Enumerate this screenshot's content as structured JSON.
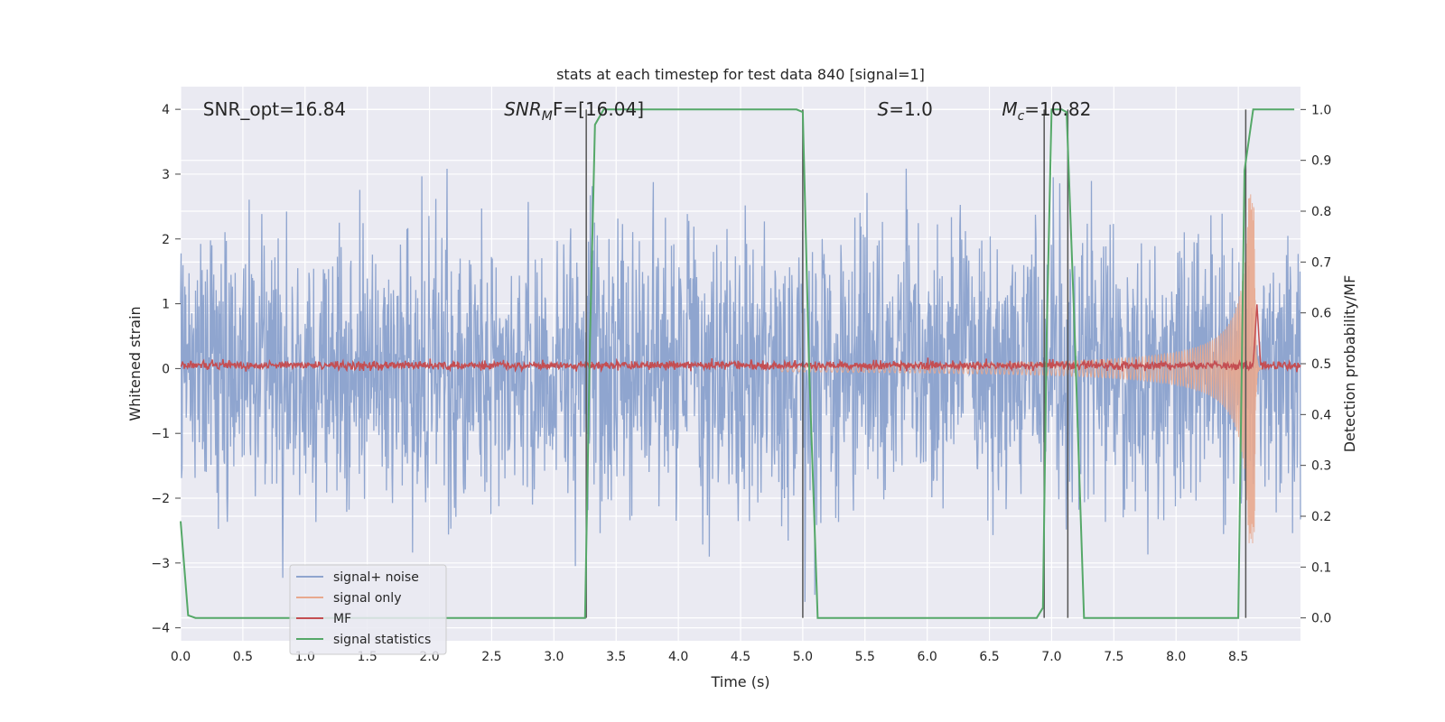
{
  "chart_data": {
    "type": "line",
    "title": "stats at each timestep for test data 840 [signal=1]",
    "xlabel": "Time (s)",
    "ylabel": "Whitened strain",
    "y2label": "Detection probability/MF",
    "xlim": [
      0,
      9
    ],
    "ylim": [
      -4.2,
      4.35
    ],
    "y2lim": [
      -0.045,
      1.045
    ],
    "xticks": [
      "0.0",
      "0.5",
      "1.0",
      "1.5",
      "2.0",
      "2.5",
      "3.0",
      "3.5",
      "4.0",
      "4.5",
      "5.0",
      "5.5",
      "6.0",
      "6.5",
      "7.0",
      "7.5",
      "8.0",
      "8.5"
    ],
    "yticks": [
      "−4",
      "−3",
      "−2",
      "−1",
      "0",
      "1",
      "2",
      "3",
      "4"
    ],
    "y2ticks": [
      "0.0",
      "0.1",
      "0.2",
      "0.3",
      "0.4",
      "0.5",
      "0.6",
      "0.7",
      "0.8",
      "0.9",
      "1.0"
    ],
    "grid": true,
    "legend_position": "lower-left",
    "annotations": [
      {
        "text": "SNR_opt=16.84",
        "x": 0.18,
        "y": 4.0
      },
      {
        "text": "SNR",
        "sub": "M",
        "rest": "F=[16.04]",
        "x": 2.6,
        "y": 4.0
      },
      {
        "text": "S",
        "rest": "=1.0",
        "x": 5.6,
        "y": 4.0
      },
      {
        "text": "M",
        "sub": "c",
        "rest": "=10.82",
        "x": 6.6,
        "y": 4.0
      }
    ],
    "vertical_markers": [
      3.26,
      5.0,
      6.94,
      7.13,
      8.56
    ],
    "series": [
      {
        "name": "signal+ noise",
        "axis": "left",
        "color": "#8fa5cf",
        "description": "whitened noise, amplitude ~ +/-3.3"
      },
      {
        "name": "signal only",
        "axis": "left",
        "color": "#e8a98e",
        "chirp_start": 4.8,
        "merger": 8.63,
        "peak": 2.7
      },
      {
        "name": "MF",
        "axis": "left",
        "color": "#c44e52",
        "baseline": 0.05,
        "peak_x": 8.65,
        "peak_y": 0.99
      },
      {
        "name": "signal statistics",
        "axis": "right",
        "color": "#55a868",
        "x": [
          0.0,
          0.06,
          0.12,
          3.25,
          3.29,
          3.33,
          3.4,
          4.95,
          5.0,
          5.05,
          5.12,
          6.88,
          6.93,
          6.96,
          7.0,
          7.08,
          7.12,
          7.18,
          7.26,
          8.5,
          8.55,
          8.62,
          8.68,
          8.95
        ],
        "y": [
          0.19,
          0.005,
          0.0,
          0.0,
          0.55,
          0.97,
          1.0,
          1.0,
          0.995,
          0.5,
          0.0,
          0.0,
          0.02,
          0.55,
          1.0,
          1.0,
          0.995,
          0.6,
          0.0,
          0.0,
          0.88,
          1.0,
          1.0,
          1.0
        ]
      }
    ]
  }
}
